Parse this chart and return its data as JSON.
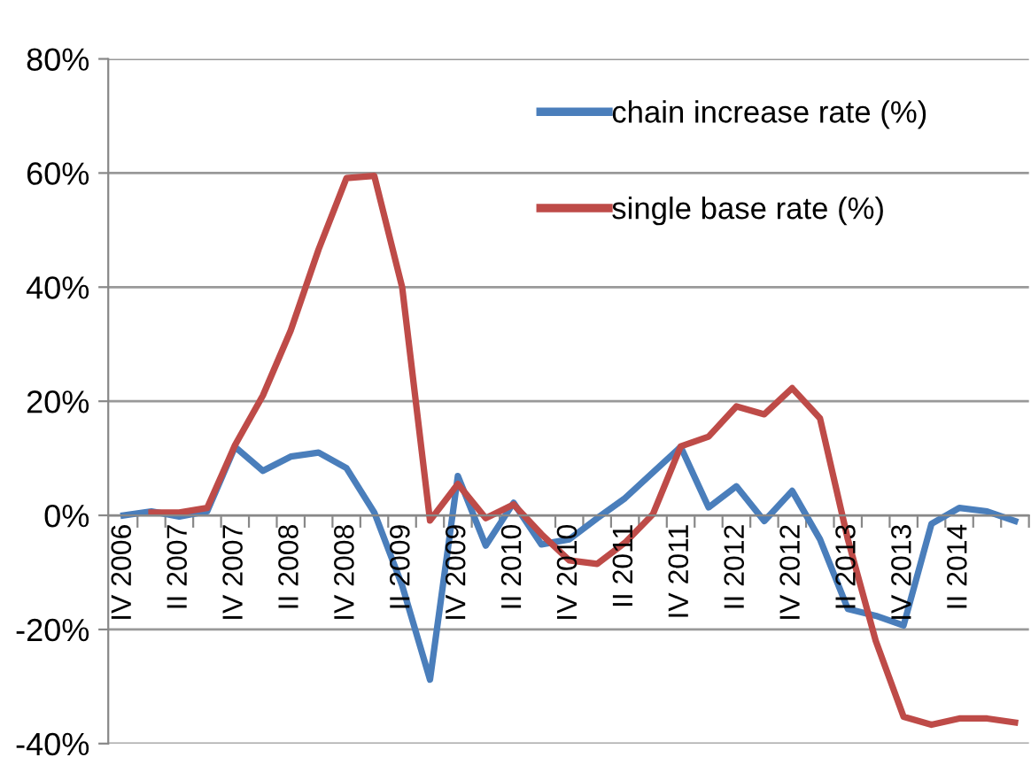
{
  "chart_data": {
    "type": "line",
    "categories": [
      "IV 2006",
      null,
      "II 2007",
      null,
      "IV 2007",
      null,
      "II 2008",
      null,
      "IV 2008",
      null,
      "II 2009",
      null,
      "IV 2009",
      null,
      "II 2010",
      null,
      "IV 2010",
      null,
      "II 2011",
      null,
      "IV 2011",
      null,
      "II 2012",
      null,
      "IV 2012",
      null,
      "II 2013",
      null,
      "IV 2013",
      null,
      "II 2014",
      null,
      null
    ],
    "series": [
      {
        "name": "chain increase rate (%)",
        "color": "#4a7ebb",
        "values": [
          0,
          0.7,
          -0.2,
          0.7,
          12,
          7.8,
          10.3,
          11,
          8.3,
          0.5,
          -12.3,
          -28.8,
          6.9,
          -5.3,
          2.2,
          -5.1,
          -4.2,
          -0.5,
          3,
          7.5,
          12,
          1.4,
          5.1,
          -1,
          4.3,
          -4.2,
          -16.4,
          -17.6,
          -19.3,
          -1.5,
          1.3,
          0.7,
          -1
        ]
      },
      {
        "name": "single base rate (%)",
        "color": "#be4b48",
        "values": [
          null,
          0.5,
          0.5,
          1.3,
          12.3,
          21,
          32.4,
          46.6,
          59.1,
          59.5,
          40,
          -0.9,
          5.5,
          -0.5,
          1.9,
          -3.3,
          -7.9,
          -8.5,
          -4.8,
          0.2,
          12.1,
          13.8,
          19.1,
          17.7,
          22.3,
          17,
          -4.2,
          -22,
          -35.3,
          -36.7,
          -35.6,
          -35.6,
          -36.3
        ]
      }
    ],
    "ylim": [
      -40,
      80
    ],
    "yticks": [
      {
        "value": -40,
        "label": "-40%"
      },
      {
        "value": -20,
        "label": "-20%"
      },
      {
        "value": 0,
        "label": "0%"
      },
      {
        "value": 20,
        "label": "20%"
      },
      {
        "value": 40,
        "label": "40%"
      },
      {
        "value": 60,
        "label": "60%"
      },
      {
        "value": 80,
        "label": "80%"
      }
    ],
    "grid": "y",
    "legend": "top right",
    "marker": "none",
    "line_style": "solid"
  }
}
